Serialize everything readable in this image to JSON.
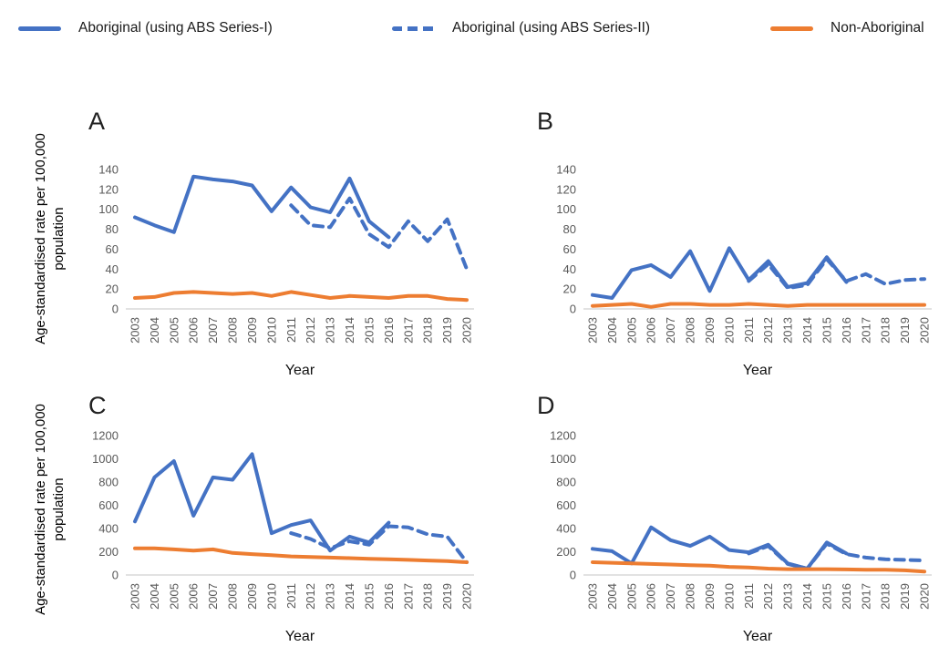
{
  "legend": {
    "items": [
      {
        "label": "Aboriginal (using ABS Series-I)",
        "color": "#4472C4",
        "dash": "solid"
      },
      {
        "label": "Aboriginal (using ABS Series-II)",
        "color": "#4472C4",
        "dash": "dashed"
      },
      {
        "label": "Non-Aboriginal",
        "color": "#ED7D31",
        "dash": "solid"
      }
    ]
  },
  "chart_data": [
    {
      "type": "line",
      "letter": "A",
      "ylabel": "Age-standardised rate per 100,000 population",
      "xlabel": "Year",
      "ylim": [
        0,
        140
      ],
      "yticks": [
        0,
        20,
        40,
        60,
        80,
        100,
        120,
        140
      ],
      "grid": false,
      "x": [
        2003,
        2004,
        2005,
        2006,
        2007,
        2008,
        2009,
        2010,
        2011,
        2012,
        2013,
        2014,
        2015,
        2016,
        2017,
        2018,
        2019,
        2020
      ],
      "series": [
        {
          "name": "Aboriginal (using ABS Series-I)",
          "style": "solid",
          "color": "#4472C4",
          "values": [
            92,
            84,
            77,
            133,
            130,
            128,
            124,
            98,
            122,
            102,
            97,
            131,
            88,
            72,
            null,
            null,
            null,
            null
          ]
        },
        {
          "name": "Aboriginal (using ABS Series-II)",
          "style": "dashed",
          "color": "#4472C4",
          "values": [
            null,
            null,
            null,
            null,
            null,
            null,
            null,
            null,
            104,
            84,
            82,
            111,
            75,
            62,
            88,
            68,
            90,
            40
          ]
        },
        {
          "name": "Non-Aboriginal",
          "style": "solid",
          "color": "#ED7D31",
          "values": [
            11,
            12,
            16,
            17,
            16,
            15,
            16,
            13,
            17,
            14,
            11,
            13,
            12,
            11,
            13,
            13,
            10,
            9
          ]
        }
      ]
    },
    {
      "type": "line",
      "letter": "B",
      "ylabel": "",
      "xlabel": "Year",
      "ylim": [
        0,
        140
      ],
      "yticks": [
        0,
        20,
        40,
        60,
        80,
        100,
        120,
        140
      ],
      "grid": false,
      "x": [
        2003,
        2004,
        2005,
        2006,
        2007,
        2008,
        2009,
        2010,
        2011,
        2012,
        2013,
        2014,
        2015,
        2016,
        2017,
        2018,
        2019,
        2020
      ],
      "series": [
        {
          "name": "Aboriginal (using ABS Series-I)",
          "style": "solid",
          "color": "#4472C4",
          "values": [
            14,
            11,
            39,
            44,
            32,
            58,
            18,
            61,
            29,
            48,
            22,
            26,
            52,
            27,
            null,
            null,
            null,
            null
          ]
        },
        {
          "name": "Aboriginal (using ABS Series-II)",
          "style": "dashed",
          "color": "#4472C4",
          "values": [
            null,
            null,
            null,
            null,
            null,
            null,
            null,
            null,
            28,
            45,
            21,
            24,
            50,
            28,
            35,
            25,
            29,
            30
          ]
        },
        {
          "name": "Non-Aboriginal",
          "style": "solid",
          "color": "#ED7D31",
          "values": [
            3,
            4,
            5,
            2,
            5,
            5,
            4,
            4,
            5,
            4,
            3,
            4,
            4,
            4,
            4,
            4,
            4,
            4
          ]
        }
      ]
    },
    {
      "type": "line",
      "letter": "C",
      "ylabel": "Age-standardised rate per 100,000 population",
      "xlabel": "Year",
      "ylim": [
        0,
        1200
      ],
      "yticks": [
        0,
        200,
        400,
        600,
        800,
        1000,
        1200
      ],
      "grid": false,
      "x": [
        2003,
        2004,
        2005,
        2006,
        2007,
        2008,
        2009,
        2010,
        2011,
        2012,
        2013,
        2014,
        2015,
        2016,
        2017,
        2018,
        2019,
        2020
      ],
      "series": [
        {
          "name": "Aboriginal (using ABS Series-I)",
          "style": "solid",
          "color": "#4472C4",
          "values": [
            460,
            840,
            980,
            510,
            840,
            820,
            1040,
            360,
            430,
            470,
            210,
            330,
            280,
            450,
            null,
            null,
            null,
            null
          ]
        },
        {
          "name": "Aboriginal (using ABS Series-II)",
          "style": "dashed",
          "color": "#4472C4",
          "values": [
            null,
            null,
            null,
            null,
            null,
            null,
            null,
            null,
            360,
            310,
            230,
            290,
            260,
            420,
            410,
            350,
            330,
            110
          ]
        },
        {
          "name": "Non-Aboriginal",
          "style": "solid",
          "color": "#ED7D31",
          "values": [
            230,
            230,
            220,
            210,
            220,
            190,
            180,
            170,
            160,
            155,
            150,
            145,
            140,
            135,
            130,
            125,
            120,
            110
          ]
        }
      ]
    },
    {
      "type": "line",
      "letter": "D",
      "ylabel": "",
      "xlabel": "Year",
      "ylim": [
        0,
        1200
      ],
      "yticks": [
        0,
        200,
        400,
        600,
        800,
        1000,
        1200
      ],
      "grid": false,
      "x": [
        2003,
        2004,
        2005,
        2006,
        2007,
        2008,
        2009,
        2010,
        2011,
        2012,
        2013,
        2014,
        2015,
        2016,
        2017,
        2018,
        2019,
        2020
      ],
      "series": [
        {
          "name": "Aboriginal (using ABS Series-I)",
          "style": "solid",
          "color": "#4472C4",
          "values": [
            225,
            205,
            100,
            410,
            300,
            250,
            330,
            215,
            195,
            260,
            100,
            55,
            280,
            185,
            null,
            null,
            null,
            null
          ]
        },
        {
          "name": "Aboriginal (using ABS Series-II)",
          "style": "dashed",
          "color": "#4472C4",
          "values": [
            null,
            null,
            null,
            null,
            null,
            null,
            null,
            null,
            185,
            250,
            95,
            55,
            270,
            180,
            150,
            135,
            130,
            125
          ]
        },
        {
          "name": "Non-Aboriginal",
          "style": "solid",
          "color": "#ED7D31",
          "values": [
            110,
            105,
            100,
            95,
            90,
            85,
            80,
            70,
            65,
            55,
            50,
            50,
            50,
            48,
            45,
            45,
            40,
            30
          ]
        }
      ]
    }
  ]
}
